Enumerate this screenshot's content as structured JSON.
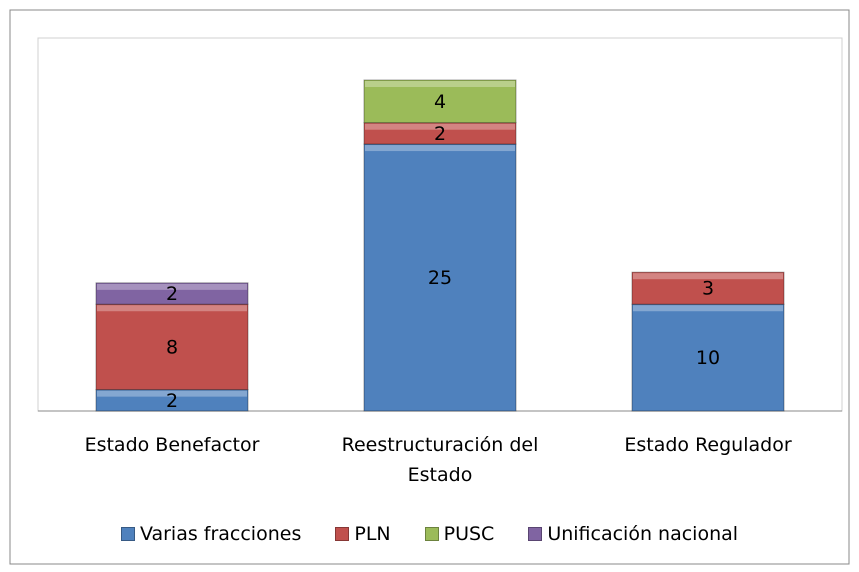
{
  "chart_data": {
    "type": "bar",
    "stacked": true,
    "categories": [
      "Estado Benefactor",
      "Reestructuración del Estado",
      "Estado Regulador"
    ],
    "series": [
      {
        "name": "Varias fracciones",
        "color": "#4f81bd",
        "values": [
          2,
          25,
          10
        ]
      },
      {
        "name": "PLN",
        "color": "#c0504d",
        "values": [
          8,
          2,
          3
        ]
      },
      {
        "name": "PUSC",
        "color": "#9bbb59",
        "values": [
          null,
          4,
          null
        ]
      },
      {
        "name": "Unificación nacional",
        "color": "#8064a2",
        "values": [
          2,
          null,
          null
        ]
      }
    ],
    "legend": "bottom"
  }
}
